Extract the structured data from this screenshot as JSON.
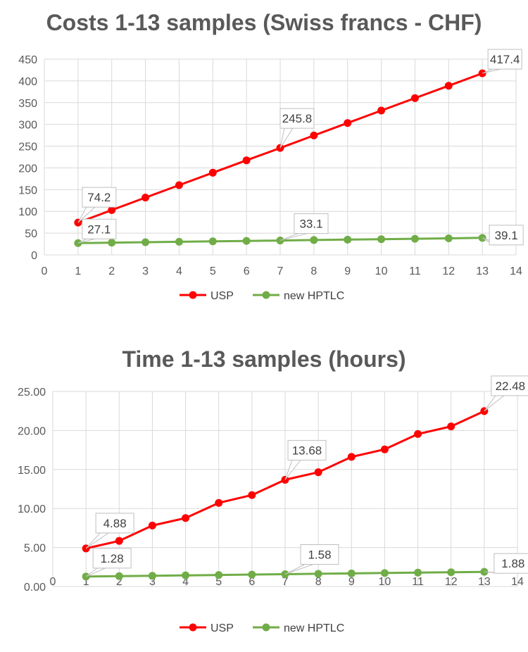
{
  "chart_data": [
    {
      "type": "line",
      "title": "Costs 1-13 samples (Swiss francs - CHF)",
      "xlabel": "",
      "ylabel": "",
      "xlim": [
        0,
        14
      ],
      "ylim": [
        0,
        450
      ],
      "x_ticks": [
        "0",
        "1",
        "2",
        "3",
        "4",
        "5",
        "6",
        "7",
        "8",
        "9",
        "10",
        "11",
        "12",
        "13",
        "14"
      ],
      "y_ticks": [
        "0",
        "50",
        "100",
        "150",
        "200",
        "250",
        "300",
        "350",
        "400",
        "450"
      ],
      "grid": true,
      "legend": "bottom",
      "x": [
        1,
        2,
        3,
        4,
        5,
        6,
        7,
        8,
        9,
        10,
        11,
        12,
        13
      ],
      "series": [
        {
          "name": "USP",
          "color": "#ff0000",
          "values": [
            74.2,
            103,
            131.8,
            160.3,
            188.9,
            217.4,
            245.8,
            274.5,
            303.2,
            331.8,
            360.3,
            388.8,
            417.4
          ]
        },
        {
          "name": "new HPTLC",
          "color": "#70ad47",
          "values": [
            27.1,
            28.1,
            29.1,
            30.1,
            31.1,
            32.1,
            33.1,
            34.1,
            35.1,
            36.1,
            37.1,
            38.1,
            39.1
          ]
        }
      ],
      "annotations": [
        {
          "series": 0,
          "index": 0,
          "text": "74.2"
        },
        {
          "series": 0,
          "index": 6,
          "text": "245.8"
        },
        {
          "series": 0,
          "index": 12,
          "text": "417.4"
        },
        {
          "series": 1,
          "index": 0,
          "text": "27.1"
        },
        {
          "series": 1,
          "index": 6,
          "text": "33.1"
        },
        {
          "series": 1,
          "index": 12,
          "text": "39.1"
        }
      ]
    },
    {
      "type": "line",
      "title": "Time 1-13 samples (hours)",
      "xlabel": "",
      "ylabel": "",
      "xlim": [
        0,
        14
      ],
      "ylim": [
        0,
        25
      ],
      "x_ticks": [
        "0",
        "1",
        "2",
        "3",
        "4",
        "5",
        "6",
        "7",
        "8",
        "9",
        "10",
        "11",
        "12",
        "13",
        "14"
      ],
      "y_ticks": [
        "0.00",
        "5.00",
        "10.00",
        "15.00",
        "20.00",
        "25.00"
      ],
      "grid": true,
      "legend": "bottom",
      "x": [
        1,
        2,
        3,
        4,
        5,
        6,
        7,
        8,
        9,
        10,
        11,
        12,
        13
      ],
      "series": [
        {
          "name": "USP",
          "color": "#ff0000",
          "values": [
            4.88,
            5.85,
            7.82,
            8.78,
            10.72,
            11.72,
            13.68,
            14.65,
            16.62,
            17.58,
            19.55,
            20.52,
            22.48
          ]
        },
        {
          "name": "new HPTLC",
          "color": "#70ad47",
          "values": [
            1.28,
            1.33,
            1.38,
            1.43,
            1.48,
            1.53,
            1.58,
            1.63,
            1.68,
            1.73,
            1.78,
            1.83,
            1.88
          ]
        }
      ],
      "annotations": [
        {
          "series": 0,
          "index": 0,
          "text": "4.88"
        },
        {
          "series": 0,
          "index": 6,
          "text": "13.68"
        },
        {
          "series": 0,
          "index": 12,
          "text": "22.48"
        },
        {
          "series": 1,
          "index": 0,
          "text": "1.28"
        },
        {
          "series": 1,
          "index": 6,
          "text": "1.58"
        },
        {
          "series": 1,
          "index": 12,
          "text": "1.88"
        }
      ]
    }
  ]
}
